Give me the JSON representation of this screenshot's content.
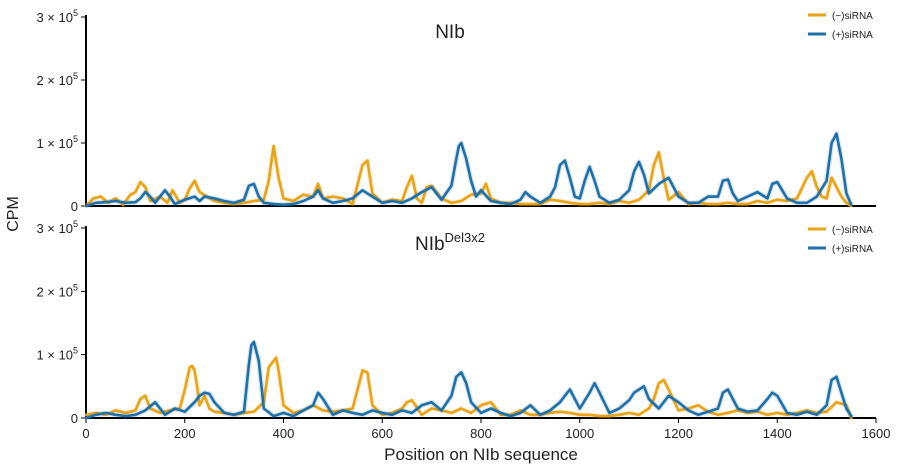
{
  "figure": {
    "ylabel": "CPM",
    "xlabel": "Position on NIb sequence"
  },
  "chart_data": [
    {
      "type": "line",
      "title": "NIb",
      "title_superscript": "",
      "xlim": [
        0,
        1600
      ],
      "ylim": [
        0,
        300000
      ],
      "yticks": [
        {
          "value": 0,
          "label": "0",
          "exp": ""
        },
        {
          "value": 100000,
          "label": "1 × 10",
          "exp": "5"
        },
        {
          "value": 200000,
          "label": "2 × 10",
          "exp": "5"
        },
        {
          "value": 300000,
          "label": "3 × 10",
          "exp": "5"
        }
      ],
      "legend": {
        "position": "top-right"
      },
      "series": [
        {
          "name": "(−)siRNA",
          "color": "#e8a317",
          "x": [
            0,
            15,
            30,
            45,
            60,
            75,
            90,
            100,
            110,
            120,
            130,
            150,
            165,
            175,
            190,
            200,
            210,
            220,
            230,
            245,
            260,
            280,
            300,
            320,
            340,
            360,
            370,
            380,
            390,
            400,
            420,
            440,
            460,
            470,
            480,
            500,
            520,
            540,
            560,
            570,
            580,
            600,
            620,
            640,
            650,
            660,
            670,
            680,
            690,
            700,
            720,
            740,
            760,
            780,
            800,
            810,
            820,
            840,
            860,
            880,
            900,
            920,
            940,
            960,
            980,
            1000,
            1020,
            1040,
            1060,
            1080,
            1100,
            1120,
            1140,
            1150,
            1160,
            1170,
            1180,
            1200,
            1220,
            1240,
            1260,
            1280,
            1300,
            1320,
            1340,
            1360,
            1380,
            1400,
            1420,
            1440,
            1460,
            1470,
            1480,
            1490,
            1500,
            1510,
            1520,
            1530,
            1540,
            1550
          ],
          "values": [
            0,
            12000,
            15000,
            5000,
            12000,
            2000,
            18000,
            22000,
            38000,
            30000,
            8000,
            15000,
            5000,
            25000,
            5000,
            10000,
            28000,
            40000,
            22000,
            15000,
            8000,
            5000,
            3000,
            5000,
            8000,
            10000,
            40000,
            95000,
            45000,
            12000,
            8000,
            18000,
            15000,
            35000,
            12000,
            15000,
            12000,
            3000,
            65000,
            72000,
            20000,
            5000,
            10000,
            8000,
            30000,
            48000,
            12000,
            5000,
            30000,
            32000,
            12000,
            5000,
            8000,
            18000,
            20000,
            35000,
            12000,
            5000,
            5000,
            3000,
            3000,
            3000,
            10000,
            8000,
            5000,
            3000,
            3000,
            5000,
            3000,
            8000,
            5000,
            10000,
            25000,
            65000,
            85000,
            45000,
            10000,
            22000,
            3000,
            5000,
            3000,
            3000,
            5000,
            3000,
            3000,
            8000,
            5000,
            10000,
            8000,
            12000,
            45000,
            55000,
            30000,
            15000,
            12000,
            45000,
            30000,
            15000,
            5000,
            0
          ]
        },
        {
          "name": "(+)siRNA",
          "color": "#1f6fa8",
          "x": [
            0,
            20,
            40,
            60,
            80,
            100,
            110,
            120,
            130,
            140,
            160,
            170,
            180,
            200,
            220,
            230,
            240,
            260,
            280,
            300,
            320,
            330,
            340,
            350,
            360,
            380,
            400,
            420,
            440,
            460,
            470,
            480,
            500,
            520,
            540,
            560,
            580,
            600,
            620,
            640,
            660,
            680,
            700,
            720,
            740,
            750,
            755,
            760,
            770,
            780,
            790,
            800,
            820,
            840,
            860,
            880,
            890,
            900,
            920,
            940,
            950,
            960,
            970,
            980,
            990,
            1000,
            1010,
            1020,
            1030,
            1040,
            1060,
            1080,
            1100,
            1110,
            1120,
            1130,
            1140,
            1160,
            1180,
            1200,
            1220,
            1240,
            1260,
            1280,
            1290,
            1300,
            1310,
            1320,
            1340,
            1360,
            1380,
            1390,
            1400,
            1420,
            1440,
            1460,
            1480,
            1500,
            1510,
            1520,
            1530,
            1540,
            1550
          ],
          "values": [
            0,
            5000,
            6000,
            8000,
            5000,
            6000,
            12000,
            22000,
            15000,
            5000,
            25000,
            15000,
            3000,
            10000,
            15000,
            8000,
            15000,
            12000,
            8000,
            5000,
            10000,
            32000,
            35000,
            15000,
            5000,
            3000,
            2000,
            3000,
            8000,
            15000,
            25000,
            12000,
            5000,
            8000,
            12000,
            25000,
            15000,
            5000,
            8000,
            5000,
            12000,
            22000,
            30000,
            10000,
            32000,
            75000,
            95000,
            100000,
            75000,
            40000,
            15000,
            25000,
            8000,
            5000,
            3000,
            10000,
            22000,
            15000,
            5000,
            15000,
            30000,
            65000,
            72000,
            45000,
            15000,
            12000,
            40000,
            62000,
            40000,
            15000,
            5000,
            10000,
            25000,
            55000,
            70000,
            50000,
            20000,
            35000,
            45000,
            15000,
            5000,
            5000,
            15000,
            15000,
            40000,
            42000,
            20000,
            8000,
            15000,
            22000,
            12000,
            35000,
            38000,
            12000,
            5000,
            5000,
            15000,
            40000,
            100000,
            115000,
            75000,
            20000,
            2000
          ]
        }
      ]
    },
    {
      "type": "line",
      "title": "NIb",
      "title_superscript": "Del3x2",
      "xlim": [
        0,
        1600
      ],
      "ylim": [
        0,
        300000
      ],
      "xticks": [
        0,
        200,
        400,
        600,
        800,
        1000,
        1200,
        1400,
        1600
      ],
      "yticks": [
        {
          "value": 0,
          "label": "0",
          "exp": ""
        },
        {
          "value": 100000,
          "label": "1 × 10",
          "exp": "5"
        },
        {
          "value": 200000,
          "label": "2 × 10",
          "exp": "5"
        },
        {
          "value": 300000,
          "label": "3 × 10",
          "exp": "5"
        }
      ],
      "legend": {
        "position": "top-right"
      },
      "series": [
        {
          "name": "(−)siRNA",
          "color": "#e8a317",
          "x": [
            0,
            20,
            40,
            60,
            80,
            100,
            110,
            120,
            130,
            150,
            170,
            190,
            200,
            210,
            215,
            220,
            225,
            230,
            240,
            250,
            260,
            280,
            300,
            320,
            340,
            360,
            370,
            380,
            385,
            390,
            400,
            420,
            440,
            460,
            480,
            500,
            520,
            540,
            560,
            570,
            580,
            600,
            620,
            640,
            650,
            660,
            680,
            700,
            720,
            740,
            760,
            780,
            800,
            820,
            840,
            860,
            880,
            900,
            920,
            940,
            960,
            980,
            1000,
            1020,
            1040,
            1060,
            1080,
            1100,
            1120,
            1140,
            1150,
            1160,
            1170,
            1180,
            1200,
            1220,
            1240,
            1260,
            1280,
            1300,
            1320,
            1340,
            1360,
            1380,
            1400,
            1420,
            1440,
            1460,
            1480,
            1500,
            1520,
            1540,
            1550
          ],
          "values": [
            5000,
            8000,
            5000,
            12000,
            8000,
            12000,
            30000,
            35000,
            15000,
            8000,
            12000,
            15000,
            45000,
            80000,
            82000,
            75000,
            50000,
            20000,
            35000,
            15000,
            10000,
            8000,
            5000,
            8000,
            10000,
            25000,
            80000,
            90000,
            95000,
            75000,
            20000,
            8000,
            12000,
            20000,
            12000,
            10000,
            12000,
            15000,
            75000,
            72000,
            20000,
            5000,
            8000,
            15000,
            25000,
            28000,
            5000,
            15000,
            12000,
            8000,
            15000,
            8000,
            20000,
            25000,
            5000,
            5000,
            12000,
            5000,
            5000,
            8000,
            10000,
            8000,
            5000,
            5000,
            3000,
            3000,
            5000,
            8000,
            5000,
            15000,
            30000,
            55000,
            60000,
            45000,
            12000,
            15000,
            20000,
            10000,
            5000,
            8000,
            12000,
            8000,
            10000,
            5000,
            8000,
            5000,
            8000,
            12000,
            8000,
            10000,
            25000,
            20000,
            0
          ]
        },
        {
          "name": "(+)siRNA",
          "color": "#1f6fa8",
          "x": [
            0,
            20,
            40,
            60,
            80,
            100,
            120,
            140,
            160,
            180,
            200,
            220,
            230,
            240,
            250,
            260,
            280,
            300,
            320,
            330,
            335,
            340,
            350,
            360,
            380,
            400,
            420,
            440,
            460,
            470,
            480,
            500,
            520,
            540,
            560,
            580,
            600,
            620,
            640,
            660,
            680,
            700,
            720,
            740,
            750,
            760,
            770,
            780,
            800,
            820,
            840,
            860,
            880,
            900,
            920,
            940,
            960,
            970,
            980,
            1000,
            1020,
            1030,
            1040,
            1060,
            1080,
            1100,
            1110,
            1120,
            1130,
            1140,
            1160,
            1180,
            1200,
            1220,
            1240,
            1260,
            1280,
            1290,
            1300,
            1320,
            1340,
            1360,
            1380,
            1390,
            1400,
            1420,
            1440,
            1460,
            1480,
            1500,
            1510,
            1520,
            1530,
            1540,
            1550
          ],
          "values": [
            0,
            5000,
            8000,
            5000,
            3000,
            5000,
            12000,
            25000,
            5000,
            15000,
            10000,
            25000,
            35000,
            40000,
            38000,
            25000,
            8000,
            5000,
            10000,
            85000,
            115000,
            120000,
            90000,
            15000,
            3000,
            8000,
            3000,
            12000,
            20000,
            40000,
            30000,
            5000,
            12000,
            8000,
            5000,
            12000,
            8000,
            5000,
            12000,
            8000,
            20000,
            25000,
            12000,
            35000,
            65000,
            72000,
            55000,
            25000,
            8000,
            15000,
            8000,
            3000,
            8000,
            20000,
            5000,
            12000,
            25000,
            35000,
            45000,
            15000,
            40000,
            55000,
            40000,
            8000,
            15000,
            28000,
            40000,
            45000,
            50000,
            30000,
            15000,
            35000,
            25000,
            12000,
            5000,
            10000,
            15000,
            40000,
            45000,
            15000,
            10000,
            12000,
            30000,
            40000,
            35000,
            8000,
            5000,
            10000,
            5000,
            20000,
            60000,
            65000,
            40000,
            15000,
            3000
          ]
        }
      ]
    }
  ]
}
